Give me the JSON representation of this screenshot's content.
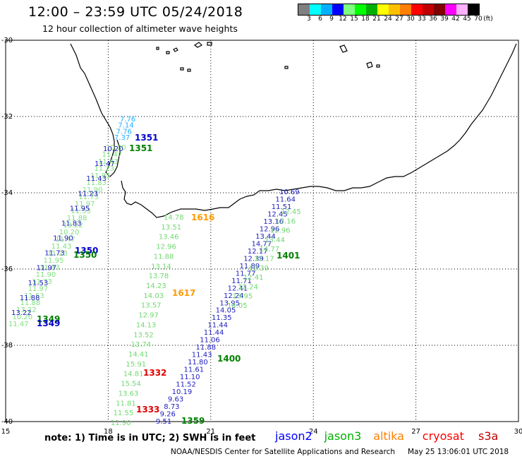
{
  "main": {
    "title": "12:00 – 23:59 UTC 05/24/2018",
    "subtitle": "12 hour collection of altimeter wave heights",
    "colorbar": {
      "unit": "(ft)",
      "colors": [
        "#7f7f7f",
        "#00ffff",
        "#00b0ff",
        "#0000ff",
        "#7fff7f",
        "#00ff00",
        "#00b000",
        "#ffff00",
        "#ffc000",
        "#ff8000",
        "#ff0000",
        "#c00000",
        "#800000",
        "#ff00ff",
        "#ffb0ff",
        "#000000"
      ],
      "labels": [
        "3",
        "6",
        "9",
        "12",
        "15",
        "18",
        "21",
        "24",
        "27",
        "30",
        "33",
        "36",
        "39",
        "42",
        "45",
        "70"
      ]
    },
    "axes": {
      "lon_ticks": [
        "15",
        "18",
        "21",
        "24",
        "27",
        "30"
      ],
      "lat_ticks": [
        "-30",
        "-32",
        "-34",
        "-36",
        "-38",
        "-40"
      ]
    },
    "note": "note: 1) Time is in UTC; 2) SWH is in feet",
    "satellites": [
      {
        "name": "jason2",
        "color": "#0000ff"
      },
      {
        "name": "jason3",
        "color": "#00b000"
      },
      {
        "name": "altika",
        "color": "#ff8000"
      },
      {
        "name": "cryosat",
        "color": "#ff0000"
      },
      {
        "name": "s3a",
        "color": "#c00000"
      }
    ],
    "credit": "NOAA/NESDIS Center for Satellite Applications and Research",
    "timestamp": "May 25 13:06:01 UTC 2018"
  },
  "tracks": {
    "jason2_west_label": "1351",
    "jason3_west_label": "1351",
    "jason2_mid_label": "1350",
    "jason3_mid_label": "1350",
    "jason3_sw_label": "1349",
    "jason2_sw_label": "1349",
    "altika_upper_label": "1616",
    "altika_lower_label": "1617",
    "jason3_east_label": "1401",
    "jason3_se_label": "1400",
    "cryosat_upper_label": "1332",
    "cryosat_lower_label": "1333",
    "jason3_s_label": "1359",
    "cyan_values": [
      "7.76",
      "7.14",
      "7.76",
      "7.37"
    ],
    "west_values": [
      "10.20",
      "11.47",
      "11.43",
      "11.23",
      "11.95",
      "11.83",
      "11.90",
      "11.73",
      "11.97",
      "11.53",
      "11.88",
      "13.22"
    ],
    "mid_values": [
      "14.78",
      "13.51",
      "13.46",
      "12.96",
      "11.88",
      "13.14",
      "13.78",
      "14.23",
      "14.03",
      "13.57",
      "12.97",
      "14.13",
      "13.52",
      "13.74",
      "14.41",
      "15.91",
      "14.81",
      "15.54",
      "13.63",
      "11.81",
      "11.55",
      "11.90"
    ],
    "east_values": [
      "10.69",
      "11.64",
      "11.51",
      "12.45",
      "13.16",
      "12.96",
      "13.44",
      "14.77",
      "12.17",
      "12.39",
      "11.89",
      "11.77",
      "11.71",
      "12.41",
      "12.24",
      "13.95",
      "14.05",
      "11.35",
      "11.44",
      "11.44",
      "11.06",
      "11.88",
      "11.43",
      "11.80",
      "11.61",
      "11.10",
      "11.52",
      "10.19",
      "9.63",
      "8.73",
      "9.26",
      "9.51"
    ]
  }
}
